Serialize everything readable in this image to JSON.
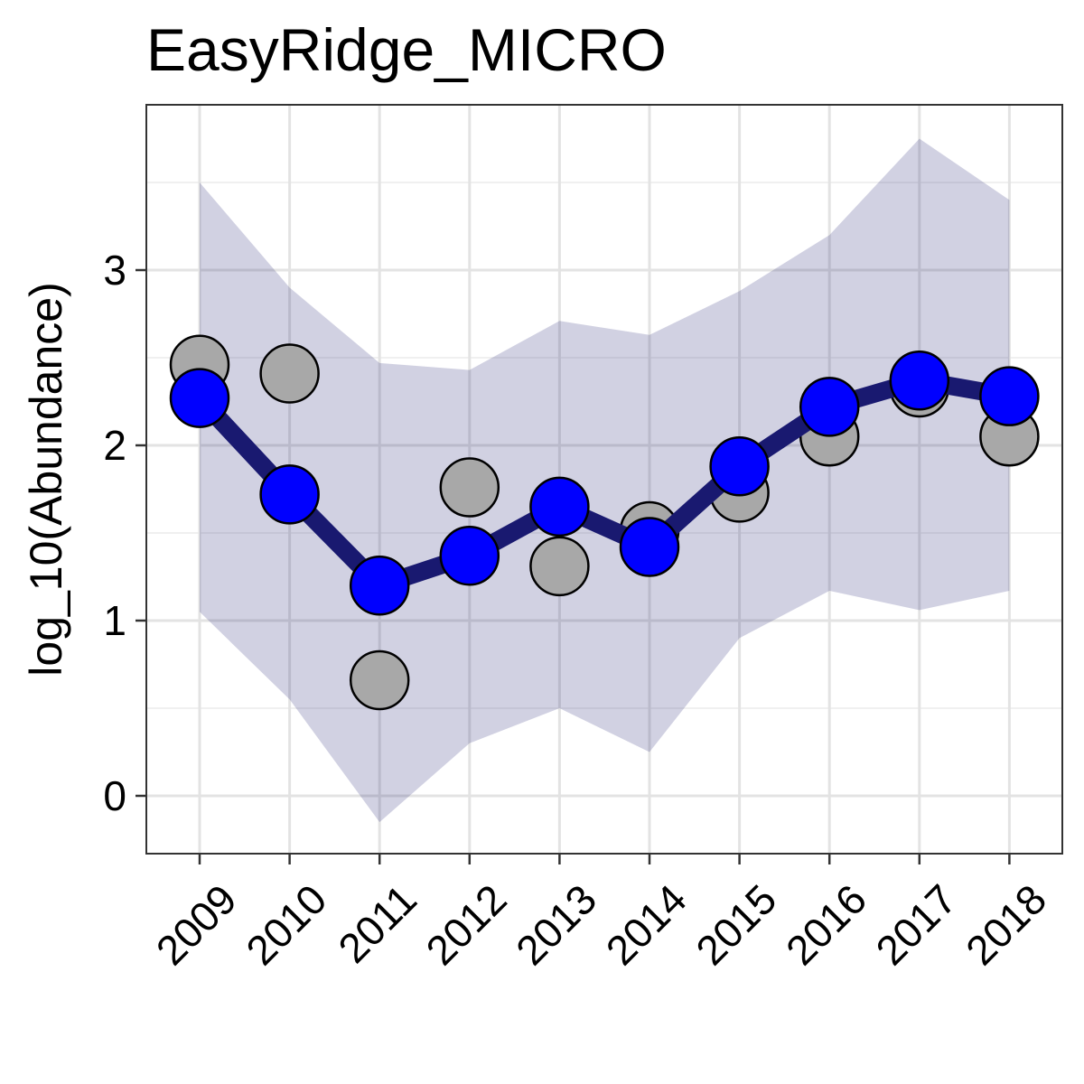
{
  "chart_data": {
    "type": "line",
    "title": "EasyRidge_MICRO",
    "xlabel": "",
    "ylabel": "log_10(Abundance)",
    "categories": [
      "2009",
      "2010",
      "2011",
      "2012",
      "2013",
      "2014",
      "2015",
      "2016",
      "2017",
      "2018"
    ],
    "y_ticks": [
      "0",
      "1",
      "2",
      "3"
    ],
    "ylim": [
      -0.35,
      3.93
    ],
    "grid": true,
    "legend": "none",
    "series": [
      {
        "kind": "ribbon",
        "lower": [
          1.05,
          0.55,
          -0.15,
          0.3,
          0.5,
          0.25,
          0.9,
          1.17,
          1.06,
          1.17
        ],
        "upper": [
          3.5,
          2.9,
          2.47,
          2.43,
          2.71,
          2.63,
          2.88,
          3.2,
          3.75,
          3.4
        ],
        "color": "#191970",
        "opacity": 0.2
      },
      {
        "kind": "observed-points",
        "values": [
          2.46,
          2.41,
          0.66,
          1.76,
          1.31,
          1.51,
          1.73,
          2.05,
          2.33,
          2.05
        ],
        "color": "#a8a8a8"
      },
      {
        "kind": "fitted-line",
        "values": [
          2.27,
          1.72,
          1.2,
          1.37,
          1.65,
          1.42,
          1.88,
          2.22,
          2.37,
          2.28
        ],
        "line_color": "#191970",
        "point_color": "#0000ff"
      }
    ]
  }
}
